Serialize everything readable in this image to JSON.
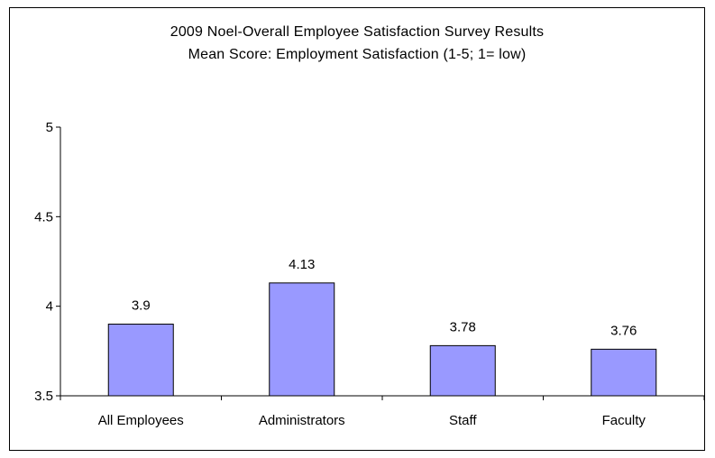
{
  "chart_data": {
    "type": "bar",
    "title": "2009 Noel-Overall Employee Satisfaction Survey Results",
    "subtitle": "Mean Score: Employment Satisfaction (1-5; 1= low)",
    "xlabel": "",
    "ylabel": "",
    "ylim": [
      3.5,
      5
    ],
    "yticks": [
      3.5,
      4,
      4.5,
      5
    ],
    "ytick_labels": [
      "3.5",
      "4",
      "4.5",
      "5"
    ],
    "grid": false,
    "legend": "none",
    "categories": [
      "All Employees",
      "Administrators",
      "Staff",
      "Faculty"
    ],
    "values": [
      3.9,
      4.13,
      3.78,
      3.76
    ],
    "value_labels": [
      "3.9",
      "4.13",
      "3.78",
      "3.76"
    ],
    "bar_color": "#9999ff",
    "bar_edge_color": "#000000"
  }
}
